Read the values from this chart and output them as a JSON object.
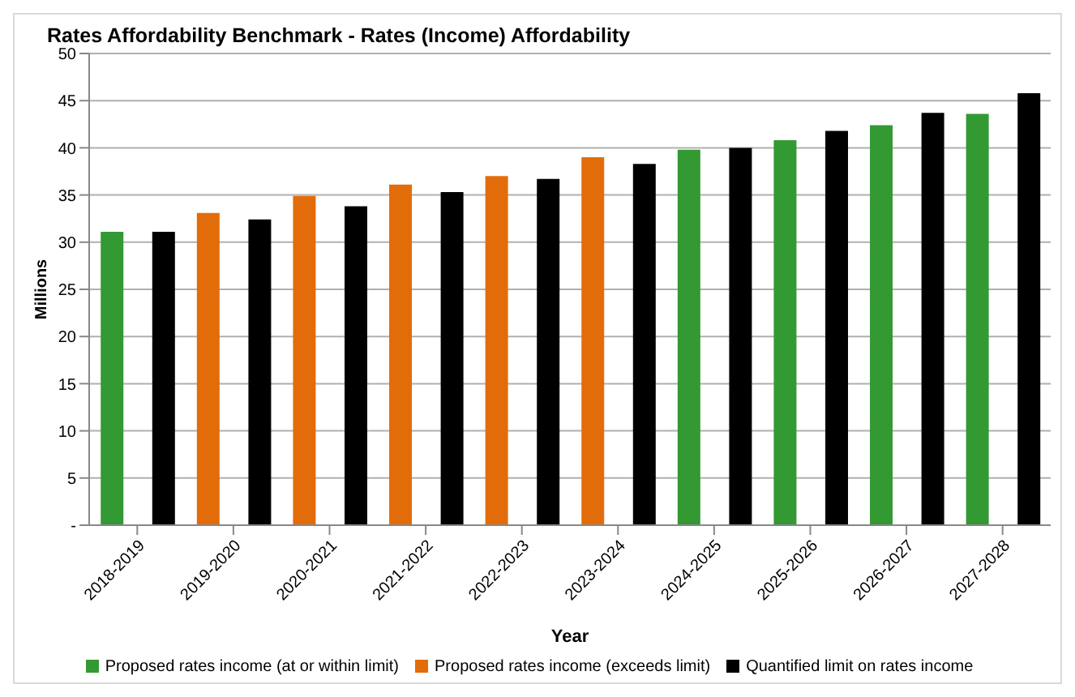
{
  "chart_data": {
    "type": "bar",
    "title": "Rates Affordability Benchmark - Rates (Income) Affordability",
    "xlabel": "Year",
    "ylabel": "Millions",
    "categories": [
      "2018-2019",
      "2019-2020",
      "2020-2021",
      "2021-2022",
      "2022-2023",
      "2023-2024",
      "2024-2025",
      "2025-2026",
      "2026-2027",
      "2027-2028"
    ],
    "series": [
      {
        "name": "Proposed rates income (at or within limit)",
        "color": "#339933",
        "values": [
          31.1,
          null,
          null,
          null,
          null,
          null,
          39.8,
          40.8,
          42.4,
          43.6
        ]
      },
      {
        "name": "Proposed rates income (exceeds limit)",
        "color": "#e36c0a",
        "values": [
          null,
          33.1,
          34.9,
          36.1,
          37.0,
          39.0,
          null,
          null,
          null,
          null
        ]
      },
      {
        "name": "Quantified limit on rates income",
        "color": "#000000",
        "values": [
          31.1,
          32.4,
          33.8,
          35.3,
          36.7,
          38.3,
          40.0,
          41.8,
          43.7,
          45.8
        ]
      }
    ],
    "ylim": [
      0,
      50
    ],
    "yticks": [
      {
        "value": 0,
        "label": "-"
      },
      5,
      10,
      15,
      20,
      25,
      30,
      35,
      40,
      45,
      50
    ],
    "grid": "y",
    "legend": "bottom"
  }
}
